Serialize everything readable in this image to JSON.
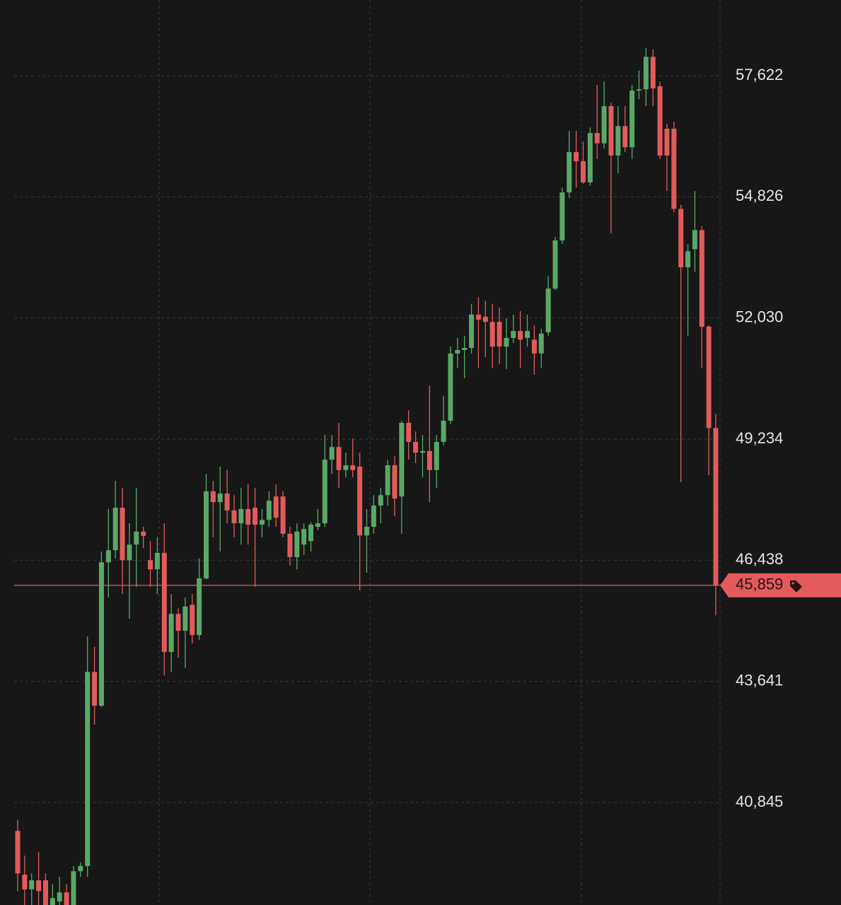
{
  "chart_data": {
    "type": "candlestick",
    "open": [
      40190,
      39180,
      38840,
      39050,
      39050,
      38480,
      38560,
      38770,
      38480,
      39260,
      39380,
      43860,
      43080,
      46390,
      46670,
      47650,
      46440,
      46800,
      47100,
      46440,
      46230,
      46610,
      44320,
      45200,
      44810,
      45410,
      44710,
      46020,
      48030,
      47780,
      47980,
      47590,
      47290,
      47620,
      47650,
      47260,
      47370,
      47910,
      47910,
      47050,
      46510,
      46800,
      46880,
      47210,
      47290,
      48760,
      49050,
      48520,
      48630,
      48600,
      47010,
      47210,
      47700,
      47940,
      48630,
      47910,
      49610,
      49170,
      48920,
      48960,
      48520,
      49170,
      49660,
      51210,
      51290,
      51340,
      52110,
      52060,
      51940,
      51940,
      51370,
      51570,
      51730,
      51570,
      51530,
      51210,
      51700,
      52710,
      53820,
      54930,
      55860,
      55650,
      55160,
      56300,
      56060,
      56920,
      55780,
      56460,
      55970,
      57280,
      57310,
      58060,
      57380,
      56400,
      56400,
      54550,
      53200,
      53620,
      54060,
      51830,
      49490
    ],
    "high": [
      40440,
      39620,
      39210,
      39700,
      39210,
      38970,
      39130,
      38970,
      39380,
      39460,
      44680,
      44440,
      46640,
      47620,
      48270,
      48110,
      47290,
      48110,
      47210,
      46880,
      46970,
      47290,
      45660,
      45330,
      45580,
      45660,
      46480,
      48430,
      48270,
      48600,
      48520,
      47940,
      48110,
      48190,
      48110,
      47620,
      48030,
      48190,
      48030,
      47210,
      47290,
      47290,
      47320,
      47620,
      49330,
      49330,
      49610,
      48920,
      49250,
      48920,
      47620,
      47940,
      48110,
      48760,
      48840,
      49660,
      49900,
      49410,
      49330,
      50470,
      49330,
      50230,
      51370,
      51570,
      51620,
      52350,
      52510,
      52430,
      52350,
      52270,
      52020,
      52110,
      52190,
      52110,
      51860,
      51780,
      53000,
      53900,
      55040,
      56350,
      56350,
      56100,
      56430,
      57410,
      57490,
      57000,
      56920,
      56920,
      57410,
      57740,
      58260,
      58230,
      57490,
      56510,
      56560,
      54640,
      53740,
      54960,
      54150,
      51860,
      49820
    ],
    "low": [
      38800,
      38480,
      38480,
      38480,
      38480,
      38480,
      38480,
      38480,
      38480,
      39130,
      39130,
      42640,
      43050,
      45580,
      46480,
      45660,
      45090,
      45820,
      46720,
      45820,
      45660,
      43780,
      43860,
      44190,
      43950,
      44520,
      44600,
      45990,
      46970,
      46640,
      47290,
      46970,
      46800,
      46800,
      45820,
      46970,
      47210,
      47210,
      46970,
      46310,
      46230,
      46560,
      46640,
      47130,
      47210,
      48430,
      48110,
      48350,
      48350,
      45740,
      46150,
      47050,
      47290,
      47700,
      47450,
      47050,
      48760,
      48680,
      48350,
      47780,
      48110,
      49090,
      49580,
      50880,
      50640,
      51210,
      50880,
      51130,
      50880,
      50960,
      50850,
      51450,
      50880,
      51370,
      50720,
      50880,
      51620,
      52680,
      53740,
      54800,
      55040,
      55130,
      55090,
      55700,
      55940,
      53980,
      55370,
      55860,
      55700,
      57080,
      56920,
      56920,
      55700,
      54960,
      54470,
      48240,
      51620,
      53090,
      50880,
      48400,
      45170
    ],
    "close": [
      39210,
      38840,
      39050,
      38800,
      38480,
      38640,
      38770,
      38480,
      39260,
      39380,
      43860,
      43080,
      46390,
      46670,
      47650,
      46440,
      46800,
      47100,
      47000,
      46230,
      46610,
      44320,
      45200,
      44810,
      45370,
      44710,
      46020,
      48030,
      47780,
      47980,
      47590,
      47290,
      47620,
      47260,
      47260,
      47370,
      47810,
      47420,
      47050,
      46510,
      47100,
      47160,
      47260,
      47290,
      48760,
      49050,
      48520,
      48630,
      48520,
      47010,
      47210,
      47700,
      47940,
      48630,
      47860,
      49610,
      49170,
      48920,
      48960,
      48520,
      49170,
      49660,
      51210,
      51290,
      51340,
      52110,
      51990,
      51940,
      51370,
      51370,
      51570,
      51730,
      51530,
      51730,
      51210,
      51670,
      52710,
      53820,
      54930,
      55860,
      55650,
      55160,
      56300,
      56060,
      56920,
      55780,
      56460,
      55970,
      57280,
      57310,
      58060,
      57330,
      55780,
      55780,
      54550,
      53200,
      53570,
      54060,
      51830,
      49490,
      45859
    ],
    "ylim": [
      38480,
      59370
    ],
    "yticks": [
      {
        "value": 40845,
        "label": "40,845"
      },
      {
        "value": 43641,
        "label": "43,641"
      },
      {
        "value": 46438,
        "label": "46,438"
      },
      {
        "value": 49234,
        "label": "49,234"
      },
      {
        "value": 52030,
        "label": "52,030"
      },
      {
        "value": 54826,
        "label": "54,826"
      },
      {
        "value": 57622,
        "label": "57,622"
      }
    ],
    "grid": true,
    "up_color": "#5aa867",
    "down_color": "#e25b5b",
    "last_price": {
      "value": 45859,
      "label": "45,859"
    }
  }
}
